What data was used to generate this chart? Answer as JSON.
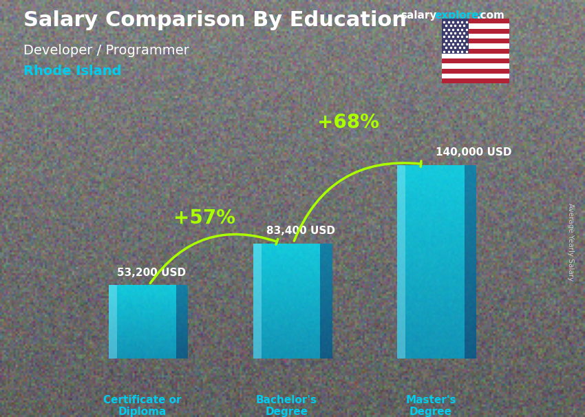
{
  "title_line1": "Salary Comparison By Education",
  "subtitle_line1": "Developer / Programmer",
  "subtitle_line2": "Rhode Island",
  "categories": [
    "Certificate or\nDiploma",
    "Bachelor's\nDegree",
    "Master's\nDegree"
  ],
  "values": [
    53200,
    83400,
    140000
  ],
  "value_labels": [
    "53,200 USD",
    "83,400 USD",
    "140,000 USD"
  ],
  "pct_labels": [
    "+57%",
    "+68%"
  ],
  "bar_color_main": "#00bfdf",
  "bar_color_light": "#40d8f0",
  "bar_color_highlight": "#80eeff",
  "bar_alpha": 0.82,
  "bg_color": "#3a3a4a",
  "title_color": "#ffffff",
  "subtitle1_color": "#ffffff",
  "subtitle2_color": "#00ccee",
  "category_color": "#00ccee",
  "value_color": "#ffffff",
  "pct_color": "#aaff00",
  "arrow_color": "#aaff00",
  "ylabel": "Average Yearly Salary",
  "ylabel_color": "#cccccc",
  "ymax": 175000,
  "bar_width": 0.13,
  "x_positions": [
    0.22,
    0.5,
    0.78
  ],
  "title_fontsize": 22,
  "subtitle1_fontsize": 14,
  "subtitle2_fontsize": 14,
  "value_fontsize": 11,
  "cat_fontsize": 11,
  "pct_fontsize": 20,
  "brand_fontsize": 11
}
